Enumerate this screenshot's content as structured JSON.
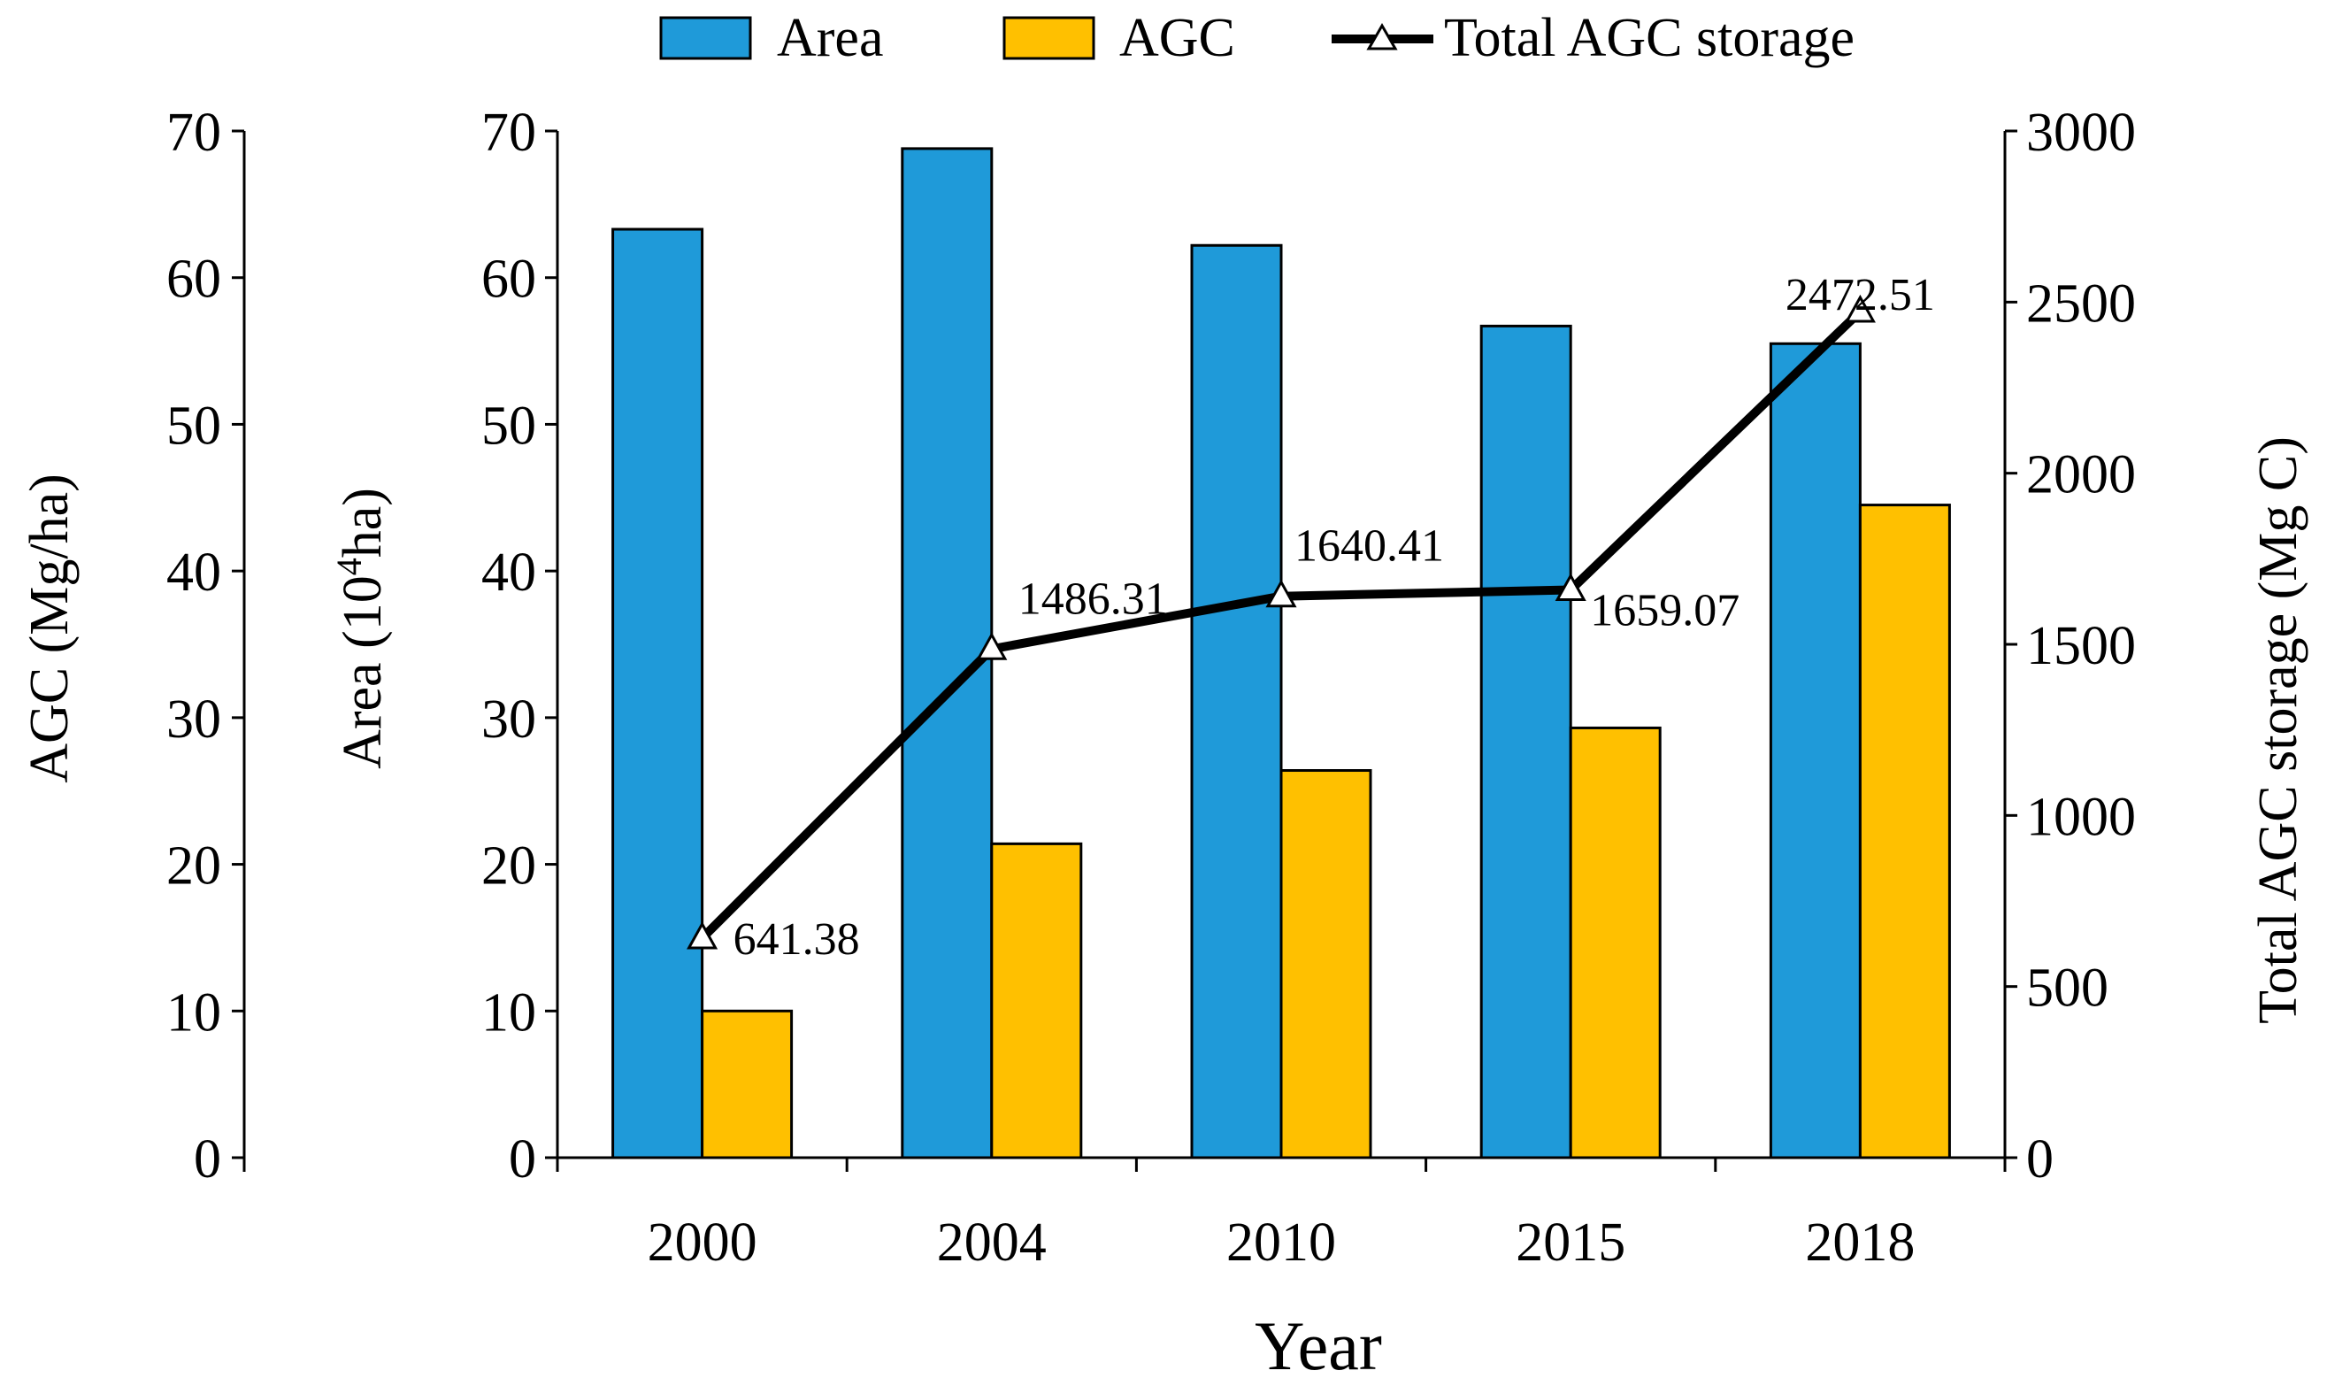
{
  "chart_data": {
    "type": "bar",
    "categories": [
      "2000",
      "2004",
      "2010",
      "2015",
      "2018"
    ],
    "xlabel": "Year",
    "series": [
      {
        "name": "Area",
        "axis": "area",
        "kind": "bar",
        "values": [
          63.3,
          68.8,
          62.2,
          56.7,
          55.5
        ]
      },
      {
        "name": "AGC",
        "axis": "agc",
        "kind": "bar",
        "values": [
          10.0,
          21.4,
          26.4,
          29.3,
          44.5
        ]
      },
      {
        "name": "Total AGC storage",
        "axis": "storage",
        "kind": "line",
        "values": [
          641.38,
          1486.31,
          1640.41,
          1659.07,
          2472.51
        ]
      }
    ],
    "data_labels": [
      "641.38",
      "1486.31",
      "1640.41",
      "1659.07",
      "2472.51"
    ],
    "axes": {
      "agc": {
        "label": "AGC (Mg/ha)",
        "ylim": [
          0,
          70
        ],
        "ticks": [
          "0",
          "10",
          "20",
          "30",
          "40",
          "50",
          "60",
          "70"
        ]
      },
      "area": {
        "label_prefix": "Area (10",
        "label_sup": "4",
        "label_suffix": "ha)",
        "ylim": [
          0,
          70
        ],
        "ticks": [
          "0",
          "10",
          "20",
          "30",
          "40",
          "50",
          "60",
          "70"
        ]
      },
      "storage": {
        "label": "Total AGC storage (Mg C)",
        "ylim": [
          0,
          3000
        ],
        "ticks": [
          "0",
          "500",
          "1000",
          "1500",
          "2000",
          "2500",
          "3000"
        ]
      }
    },
    "legend": {
      "position": "top-center",
      "items": [
        "Area",
        "AGC",
        "Total AGC storage"
      ]
    },
    "colors": {
      "Area": "#1f9ad9",
      "AGC": "#ffc000",
      "Total AGC storage": "#000000"
    }
  }
}
